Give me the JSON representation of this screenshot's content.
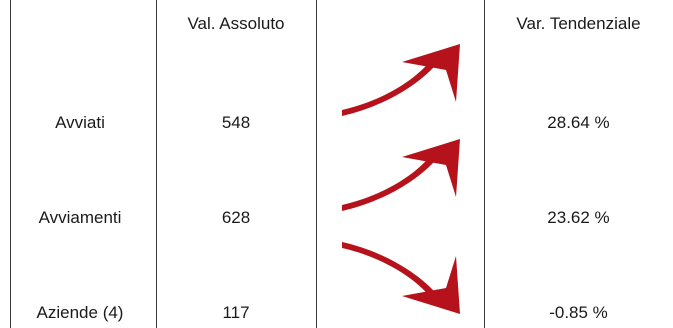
{
  "table": {
    "headers": {
      "absolute_value": "Val. Assoluto",
      "trend_variation": "Var. Tendenziale"
    },
    "rows": [
      {
        "label": "Avviati",
        "absolute_value": "548",
        "trend_variation": "28.64 %",
        "trend": "up"
      },
      {
        "label": "Avviamenti",
        "absolute_value": "628",
        "trend_variation": "23.62 %",
        "trend": "up"
      },
      {
        "label": "Aziende (4)",
        "absolute_value": "117",
        "trend_variation": "-0.85 %",
        "trend": "down"
      }
    ]
  },
  "colors": {
    "arrow": "#b5121b",
    "grid_line": "#3a3a3a",
    "text": "#1a1a1a"
  },
  "icons": {
    "up": "trend-up-arrow-icon",
    "down": "trend-down-arrow-icon"
  }
}
